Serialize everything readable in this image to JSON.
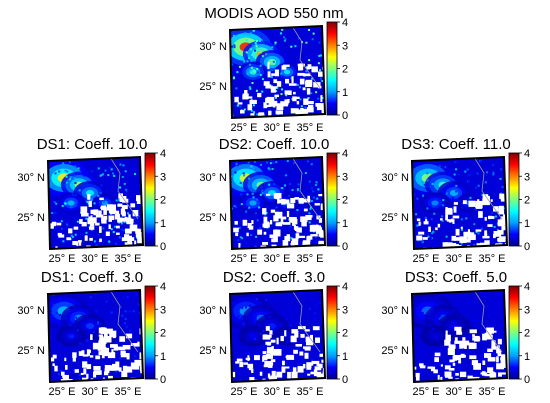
{
  "figure": {
    "colorbar_ticks": [
      "4",
      "3",
      "2",
      "1",
      "0"
    ],
    "lat_ticks": [
      "30° N",
      "25° N"
    ],
    "lon_ticks": [
      "25° E",
      "30° E",
      "35° E"
    ],
    "colormap": [
      "#00008f",
      "#0000ff",
      "#00a0ff",
      "#00ffff",
      "#7fff7f",
      "#ffff00",
      "#ff8000",
      "#ff0000",
      "#800000"
    ]
  },
  "chart_data": [
    {
      "type": "heatmap",
      "title": "MODIS AOD 550 nm",
      "colorbar_range": [
        0,
        4
      ],
      "intensity": 1.0
    },
    {
      "type": "heatmap",
      "title": "DS1: Coeff. 10.0",
      "colorbar_range": [
        0,
        4
      ],
      "intensity": 0.75
    },
    {
      "type": "heatmap",
      "title": "DS2: Coeff. 10.0",
      "colorbar_range": [
        0,
        4
      ],
      "intensity": 0.7
    },
    {
      "type": "heatmap",
      "title": "DS3: Coeff. 11.0",
      "colorbar_range": [
        0,
        4
      ],
      "intensity": 0.6
    },
    {
      "type": "heatmap",
      "title": "DS1: Coeff. 3.0",
      "colorbar_range": [
        0,
        4
      ],
      "intensity": 0.35
    },
    {
      "type": "heatmap",
      "title": "DS2: Coeff. 3.0",
      "colorbar_range": [
        0,
        4
      ],
      "intensity": 0.3
    },
    {
      "type": "heatmap",
      "title": "DS3: Coeff. 5.0",
      "colorbar_range": [
        0,
        4
      ],
      "intensity": 0.25
    }
  ]
}
